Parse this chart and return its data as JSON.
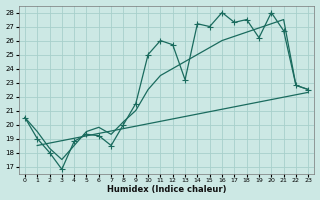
{
  "xlabel": "Humidex (Indice chaleur)",
  "bg_color": "#cce8e4",
  "grid_color": "#a8d0cb",
  "line_color": "#1a6b5e",
  "xlim": [
    -0.5,
    23.5
  ],
  "ylim": [
    16.5,
    28.5
  ],
  "yticks": [
    17,
    18,
    19,
    20,
    21,
    22,
    23,
    24,
    25,
    26,
    27,
    28
  ],
  "xticks": [
    0,
    1,
    2,
    3,
    4,
    5,
    6,
    7,
    8,
    9,
    10,
    11,
    12,
    13,
    14,
    15,
    16,
    17,
    18,
    19,
    20,
    21,
    22,
    23
  ],
  "line1_x": [
    0,
    1,
    2,
    3,
    4,
    5,
    6,
    7,
    8,
    9,
    10,
    11,
    12,
    13,
    14,
    15,
    16,
    17,
    18,
    19,
    20,
    21,
    22,
    23
  ],
  "line1_y": [
    20.5,
    19.0,
    18.0,
    16.8,
    18.8,
    19.3,
    19.2,
    18.5,
    20.0,
    21.5,
    25.0,
    26.0,
    25.7,
    23.2,
    27.2,
    27.0,
    28.0,
    27.3,
    27.5,
    26.2,
    28.0,
    26.7,
    22.8,
    22.5
  ],
  "line2_x": [
    0,
    1,
    2,
    3,
    5,
    6,
    7,
    8,
    9,
    10,
    11,
    12,
    13,
    14,
    15,
    16,
    17,
    18,
    19,
    20,
    21,
    22,
    23
  ],
  "line2_y": [
    20.5,
    19.5,
    18.3,
    17.5,
    19.5,
    19.8,
    19.3,
    20.2,
    21.0,
    22.5,
    23.5,
    24.0,
    24.5,
    25.0,
    25.5,
    26.0,
    26.3,
    26.6,
    26.9,
    27.2,
    27.5,
    22.8,
    22.5
  ],
  "line3_x": [
    1,
    23
  ],
  "line3_y": [
    18.5,
    22.3
  ]
}
